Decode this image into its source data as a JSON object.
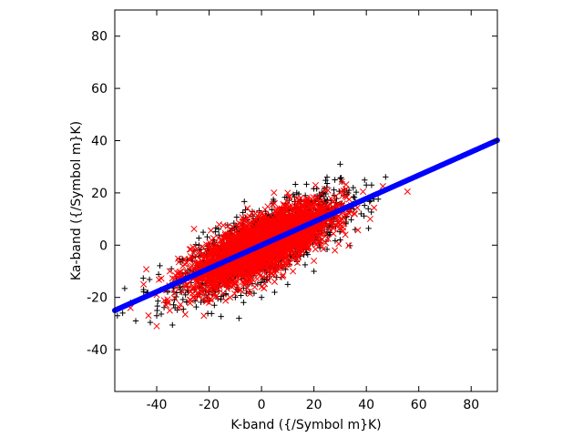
{
  "chart_data": {
    "type": "scatter",
    "title": "",
    "xlabel": "K-band ({/Symbol m}K)",
    "ylabel": "Ka-band ({/Symbol m}K)",
    "xlim": [
      -56,
      90
    ],
    "ylim": [
      -56,
      90
    ],
    "xticks": [
      -40,
      -20,
      0,
      20,
      40,
      60,
      80
    ],
    "yticks": [
      -40,
      -20,
      0,
      20,
      40,
      60,
      80
    ],
    "grid": false,
    "legend": "none",
    "series": [
      {
        "marker": "plus",
        "color": "#000000",
        "description_of_spread": "elliptical cloud along slope ~0.45, K from about -55 to 45",
        "sample_points": [
          [
            -53,
            -26
          ],
          [
            -48,
            -29
          ],
          [
            -40,
            -27
          ],
          [
            -33,
            -24
          ],
          [
            -28,
            -18
          ],
          [
            -20,
            -12
          ],
          [
            -12,
            -9
          ],
          [
            -5,
            -5
          ],
          [
            0,
            0
          ],
          [
            8,
            4
          ],
          [
            15,
            8
          ],
          [
            22,
            12
          ],
          [
            25,
            26
          ],
          [
            28,
            25
          ],
          [
            30,
            31
          ],
          [
            35,
            22
          ],
          [
            40,
            23
          ],
          [
            42,
            23
          ],
          [
            38,
            12
          ],
          [
            30,
            2
          ],
          [
            20,
            -10
          ],
          [
            10,
            -15
          ],
          [
            5,
            -18
          ],
          [
            0,
            -20
          ],
          [
            -10,
            -20
          ],
          [
            -18,
            -23
          ],
          [
            -30,
            -12
          ],
          [
            -45,
            -17
          ],
          [
            -50,
            -22
          ],
          [
            -55,
            -27
          ]
        ]
      },
      {
        "marker": "cross",
        "color": "#ff0000",
        "description_of_spread": "dense core of the cloud, K from about -50 to 35",
        "sample_points": [
          [
            -50,
            -24
          ],
          [
            -45,
            -15
          ],
          [
            -40,
            -19
          ],
          [
            -35,
            -10
          ],
          [
            -30,
            -8
          ],
          [
            -25,
            -4
          ],
          [
            -20,
            0
          ],
          [
            -15,
            2
          ],
          [
            -10,
            5
          ],
          [
            -5,
            8
          ],
          [
            0,
            12
          ],
          [
            5,
            16
          ],
          [
            10,
            20
          ],
          [
            15,
            18
          ],
          [
            20,
            15
          ],
          [
            25,
            12
          ],
          [
            30,
            8
          ],
          [
            32,
            4
          ],
          [
            28,
            -2
          ],
          [
            20,
            -6
          ],
          [
            12,
            -10
          ],
          [
            5,
            -14
          ],
          [
            0,
            -16
          ],
          [
            -5,
            -18
          ],
          [
            -12,
            -20
          ],
          [
            -20,
            -22
          ],
          [
            -27,
            -21
          ],
          [
            -40,
            -31
          ],
          [
            -35,
            -25
          ],
          [
            -22,
            -27
          ]
        ]
      },
      {
        "marker": "circle",
        "color": "#0000ff",
        "description_of_spread": "dense line from K=-56 to 90",
        "fit": {
          "slope": 0.446,
          "intercept": 0.0
        },
        "x_range": [
          -56,
          90
        ]
      }
    ]
  }
}
